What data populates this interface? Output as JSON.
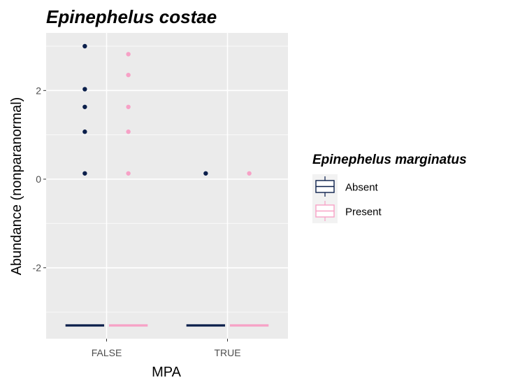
{
  "chart_data": {
    "type": "boxplot",
    "title": "Epinephelus costae",
    "xlabel": "MPA",
    "ylabel": "Abundance (nonparanormal)",
    "categories": [
      "FALSE",
      "TRUE"
    ],
    "ylim": [
      -3.6,
      3.3
    ],
    "yticks": [
      -2,
      0,
      2
    ],
    "grid": true,
    "legend": {
      "title": "Epinephelus marginatus",
      "position": "right",
      "entries": [
        "Absent",
        "Present"
      ]
    },
    "series": [
      {
        "name": "Absent",
        "color": "#0b1f4b",
        "median": {
          "FALSE": -3.3,
          "TRUE": -3.3
        },
        "outliers": {
          "FALSE": [
            3.0,
            2.03,
            1.63,
            1.07,
            0.13
          ],
          "TRUE": [
            0.13
          ]
        }
      },
      {
        "name": "Present",
        "color": "#f7a1c6",
        "median": {
          "FALSE": -3.3,
          "TRUE": -3.3
        },
        "outliers": {
          "FALSE": [
            2.82,
            2.35,
            1.63,
            1.07,
            0.13
          ],
          "TRUE": [
            0.13
          ]
        }
      }
    ]
  },
  "colors": {
    "panel_background": "#ebebeb",
    "grid_major": "#ffffff",
    "grid_minor": "#f5f5f5"
  }
}
